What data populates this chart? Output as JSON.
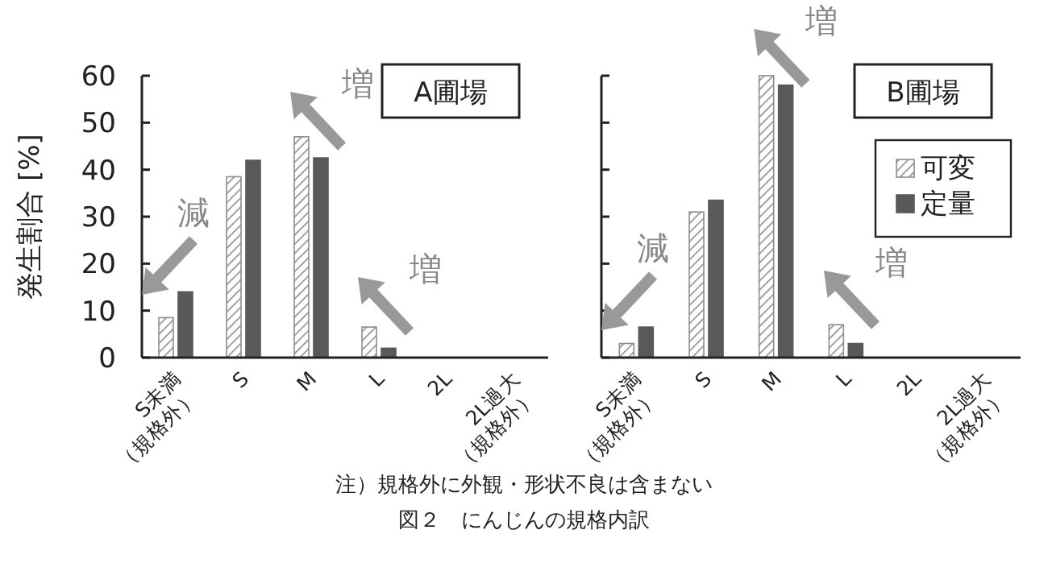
{
  "chart_data": [
    {
      "type": "bar",
      "title": "A圃場",
      "ylabel": "発生割合 [%]",
      "categories": [
        "S未満\n（規格外）",
        "S",
        "M",
        "L",
        "2L",
        "2L過大\n（規格外）"
      ],
      "series": [
        {
          "color": "#8c8c8c",
          "values": [
            8.5,
            38.5,
            47,
            6.5,
            0,
            0
          ]
        },
        {
          "color": "#595959",
          "values": [
            14,
            42,
            42.5,
            2,
            0,
            0
          ]
        }
      ],
      "ylim": [
        0,
        60
      ],
      "yticks": [
        0,
        10,
        20,
        30,
        40,
        50,
        60
      ],
      "legend": false,
      "annotations": [
        "減",
        "増",
        "増",
        "注）規格外に外観・形状不良は含まない",
        "図２　にんじんの規格内訳"
      ]
    },
    {
      "type": "bar",
      "title": "B圃場",
      "categories": [
        "S未満\n（規格外）",
        "S",
        "M",
        "L",
        "2L",
        "2L過大\n（規格外）"
      ],
      "series": [
        {
          "name": "可変",
          "color": "#8c8c8c",
          "values": [
            3,
            31,
            60,
            7,
            0,
            0
          ]
        },
        {
          "name": "定量",
          "color": "#595959",
          "values": [
            6.5,
            33.5,
            58,
            3,
            0,
            0
          ]
        }
      ],
      "ylim": [
        0,
        60
      ],
      "yticks": [
        0,
        10,
        20,
        30,
        40,
        50,
        60
      ],
      "tick_labels": "x",
      "legend": "right",
      "annotations": [
        "減",
        "増",
        "増"
      ]
    }
  ]
}
